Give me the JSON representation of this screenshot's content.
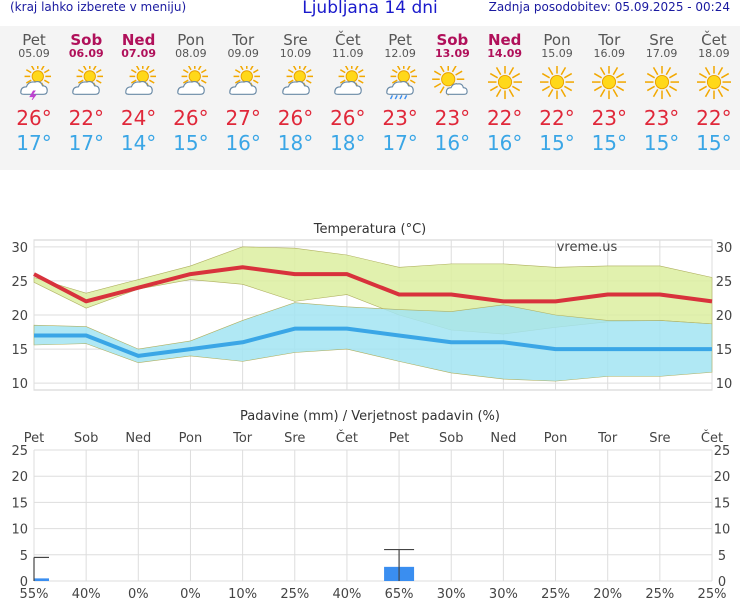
{
  "header": {
    "left_note": "(kraj lahko izberete v meniju)",
    "title": "Ljubljana 14 dni",
    "updated": "Zadnja posodobitev: 05.09.2025 - 00:24"
  },
  "days": [
    {
      "name": "Pet",
      "date": "05.09",
      "weekend": false,
      "icon": "sun-cloud-storm-icon",
      "tmax": "26°",
      "tmin": "17°"
    },
    {
      "name": "Sob",
      "date": "06.09",
      "weekend": true,
      "icon": "sun-behind-cloud-icon",
      "tmax": "22°",
      "tmin": "17°"
    },
    {
      "name": "Ned",
      "date": "07.09",
      "weekend": true,
      "icon": "sun-behind-cloud-icon",
      "tmax": "24°",
      "tmin": "14°"
    },
    {
      "name": "Pon",
      "date": "08.09",
      "weekend": false,
      "icon": "sun-behind-cloud-icon",
      "tmax": "26°",
      "tmin": "15°"
    },
    {
      "name": "Tor",
      "date": "09.09",
      "weekend": false,
      "icon": "sun-behind-cloud-icon",
      "tmax": "27°",
      "tmin": "16°"
    },
    {
      "name": "Sre",
      "date": "10.09",
      "weekend": false,
      "icon": "sun-behind-cloud-icon",
      "tmax": "26°",
      "tmin": "18°"
    },
    {
      "name": "Čet",
      "date": "11.09",
      "weekend": false,
      "icon": "sun-behind-cloud-icon",
      "tmax": "26°",
      "tmin": "18°"
    },
    {
      "name": "Pet",
      "date": "12.09",
      "weekend": false,
      "icon": "sun-cloud-rain-icon",
      "tmax": "23°",
      "tmin": "17°"
    },
    {
      "name": "Sob",
      "date": "13.09",
      "weekend": true,
      "icon": "sun-small-cloud-icon",
      "tmax": "23°",
      "tmin": "16°"
    },
    {
      "name": "Ned",
      "date": "14.09",
      "weekend": true,
      "icon": "sun-icon",
      "tmax": "22°",
      "tmin": "16°"
    },
    {
      "name": "Pon",
      "date": "15.09",
      "weekend": false,
      "icon": "sun-icon",
      "tmax": "22°",
      "tmin": "15°"
    },
    {
      "name": "Tor",
      "date": "16.09",
      "weekend": false,
      "icon": "sun-icon",
      "tmax": "23°",
      "tmin": "15°"
    },
    {
      "name": "Sre",
      "date": "17.09",
      "weekend": false,
      "icon": "sun-icon",
      "tmax": "23°",
      "tmin": "15°"
    },
    {
      "name": "Čet",
      "date": "18.09",
      "weekend": false,
      "icon": "sun-icon",
      "tmax": "22°",
      "tmin": "15°"
    }
  ],
  "chart_data": [
    {
      "type": "line",
      "title": "Temperatura (°C)",
      "watermark": "vreme.us",
      "categories": [
        "Pet",
        "Sob",
        "Ned",
        "Pon",
        "Tor",
        "Sre",
        "Čet",
        "Pet",
        "Sob",
        "Ned",
        "Pon",
        "Tor",
        "Sre",
        "Čet"
      ],
      "ylim": [
        9,
        31
      ],
      "yticks": [
        10,
        15,
        20,
        25,
        30
      ],
      "grid": true,
      "series": [
        {
          "role": "max",
          "color": "#d8323c",
          "values": [
            26,
            22,
            24,
            26,
            27,
            26,
            26,
            23,
            23,
            22,
            22,
            23,
            23,
            22
          ]
        },
        {
          "role": "max_range_upper",
          "color": "#dceea0",
          "values": [
            25.5,
            23.2,
            25.2,
            27.2,
            30,
            29.8,
            28.8,
            27,
            27.5,
            27.5,
            27,
            27.2,
            27.2,
            25.5
          ]
        },
        {
          "role": "max_range_lower",
          "color": "#dceea0",
          "values": [
            24.8,
            21,
            23.8,
            25.2,
            24.5,
            22,
            23,
            20,
            17.8,
            17.2,
            18.2,
            19,
            19.2,
            18.7
          ]
        },
        {
          "role": "min",
          "color": "#3aa6e6",
          "values": [
            17,
            17,
            14,
            15,
            16,
            18,
            18,
            17,
            16,
            16,
            15,
            15,
            15,
            15
          ]
        },
        {
          "role": "min_range_upper",
          "color": "#a2e4f2",
          "values": [
            18.5,
            18.3,
            15,
            16.2,
            19.2,
            21.8,
            21.2,
            20.8,
            20.5,
            21.5,
            20,
            19.2,
            19.2,
            18.7
          ]
        },
        {
          "role": "min_range_lower",
          "color": "#a2e4f2",
          "values": [
            15.6,
            15.8,
            13,
            14,
            13.2,
            14.5,
            15,
            13.2,
            11.5,
            10.6,
            10.3,
            11,
            11,
            11.6
          ]
        }
      ]
    },
    {
      "type": "bar",
      "title": "Padavine (mm) / Verjetnost padavin (%)",
      "categories": [
        "Pet",
        "Sob",
        "Ned",
        "Pon",
        "Tor",
        "Sre",
        "Čet",
        "Pet",
        "Sob",
        "Ned",
        "Pon",
        "Tor",
        "Sre",
        "Čet"
      ],
      "ylim": [
        0,
        25
      ],
      "yticks": [
        0,
        5,
        10,
        15,
        20,
        25
      ],
      "grid": true,
      "values": [
        0.5,
        0,
        0,
        0,
        0,
        0,
        0,
        2.7,
        0,
        0,
        0,
        0,
        0,
        0
      ],
      "error_max": [
        4.5,
        0,
        0,
        0,
        0,
        0,
        0,
        6,
        0,
        0,
        0,
        0,
        0,
        0
      ],
      "probabilities": [
        "55%",
        "40%",
        "0%",
        "0%",
        "10%",
        "25%",
        "40%",
        "65%",
        "30%",
        "30%",
        "25%",
        "20%",
        "25%",
        "25%"
      ]
    }
  ],
  "colors": {
    "weekday": "#555555",
    "weekend": "#b0105a",
    "max_temp": "#e0283a",
    "min_temp": "#3aa6e6",
    "bar": "#3a8ef0"
  }
}
